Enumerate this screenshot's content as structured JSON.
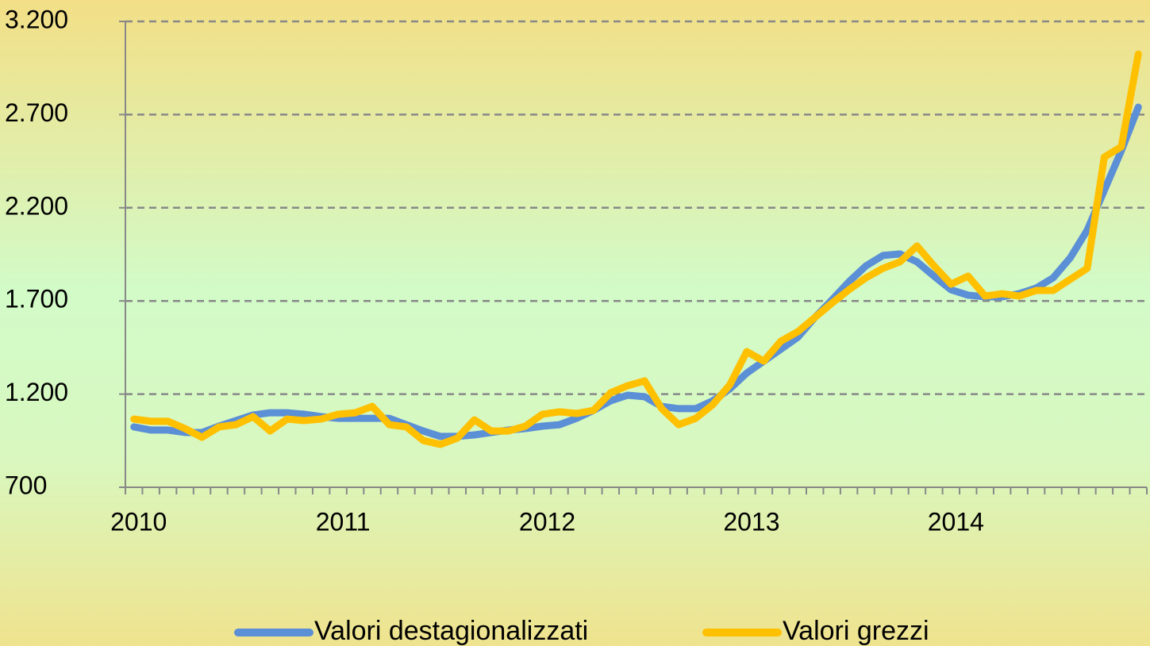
{
  "chart_data": {
    "type": "line",
    "categories": [
      "2010",
      null,
      null,
      null,
      null,
      null,
      null,
      null,
      null,
      null,
      null,
      null,
      "2011",
      null,
      null,
      null,
      null,
      null,
      null,
      null,
      null,
      null,
      null,
      null,
      "2012",
      null,
      null,
      null,
      null,
      null,
      null,
      null,
      null,
      null,
      null,
      null,
      "2013",
      null,
      null,
      null,
      null,
      null,
      null,
      null,
      null,
      null,
      null,
      null,
      "2014",
      null,
      null,
      null,
      null,
      null,
      null,
      null,
      null,
      null,
      null,
      null
    ],
    "series": [
      {
        "name": "Valori destagionalizzati",
        "color": "#5b8fd6",
        "values": [
          1024,
          1007,
          1007,
          994,
          994,
          1028,
          1058,
          1088,
          1100,
          1100,
          1092,
          1079,
          1070,
          1070,
          1070,
          1070,
          1036,
          1002,
          973,
          973,
          981,
          994,
          1007,
          1015,
          1028,
          1036,
          1070,
          1113,
          1164,
          1194,
          1186,
          1134,
          1122,
          1122,
          1164,
          1228,
          1313,
          1377,
          1441,
          1505,
          1611,
          1705,
          1803,
          1888,
          1944,
          1952,
          1910,
          1833,
          1760,
          1731,
          1722,
          1722,
          1739,
          1769,
          1824,
          1931,
          2080,
          2293,
          2506,
          2740
        ]
      },
      {
        "name": "Valori grezzi",
        "color": "#ffc000",
        "values": [
          1066,
          1054,
          1054,
          1015,
          968,
          1024,
          1036,
          1079,
          1002,
          1066,
          1058,
          1066,
          1092,
          1100,
          1134,
          1036,
          1024,
          951,
          930,
          964,
          1062,
          1002,
          1002,
          1028,
          1092,
          1105,
          1096,
          1113,
          1207,
          1245,
          1271,
          1122,
          1036,
          1070,
          1143,
          1249,
          1428,
          1377,
          1484,
          1535,
          1611,
          1688,
          1760,
          1824,
          1875,
          1910,
          1995,
          1888,
          1790,
          1833,
          1726,
          1739,
          1726,
          1756,
          1756,
          1816,
          1875,
          2472,
          2527,
          3025
        ]
      }
    ],
    "ylim": [
      700,
      3200
    ],
    "yticks": [
      700,
      {
        "value": 1200,
        "label": "1.200"
      },
      {
        "value": 1700,
        "label": "1.700"
      },
      {
        "value": 2200,
        "label": "2.200"
      },
      {
        "value": 2700,
        "label": "2.700"
      },
      {
        "value": 3200,
        "label": "3.200"
      }
    ],
    "grid": true,
    "legend": "bottom"
  }
}
